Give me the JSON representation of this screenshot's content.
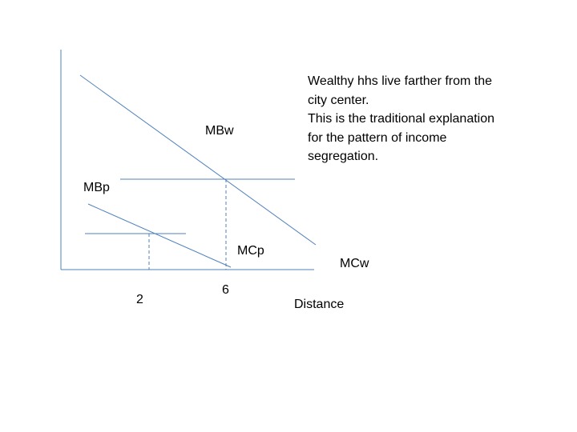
{
  "diagram": {
    "line_color": "#4f81bd",
    "text_color": "#000000",
    "labels": {
      "mb_wealthy": "MBw",
      "mb_poor": "MBp",
      "mc_poor": "MCp",
      "mc_wealthy": "MCw",
      "tick_poor": "2",
      "tick_wealthy": "6",
      "x_axis": "Distance"
    },
    "annotation": [
      "Wealthy hhs live farther from the",
      "city center.",
      "This is the traditional explanation",
      "for the pattern of income",
      "segregation."
    ]
  }
}
